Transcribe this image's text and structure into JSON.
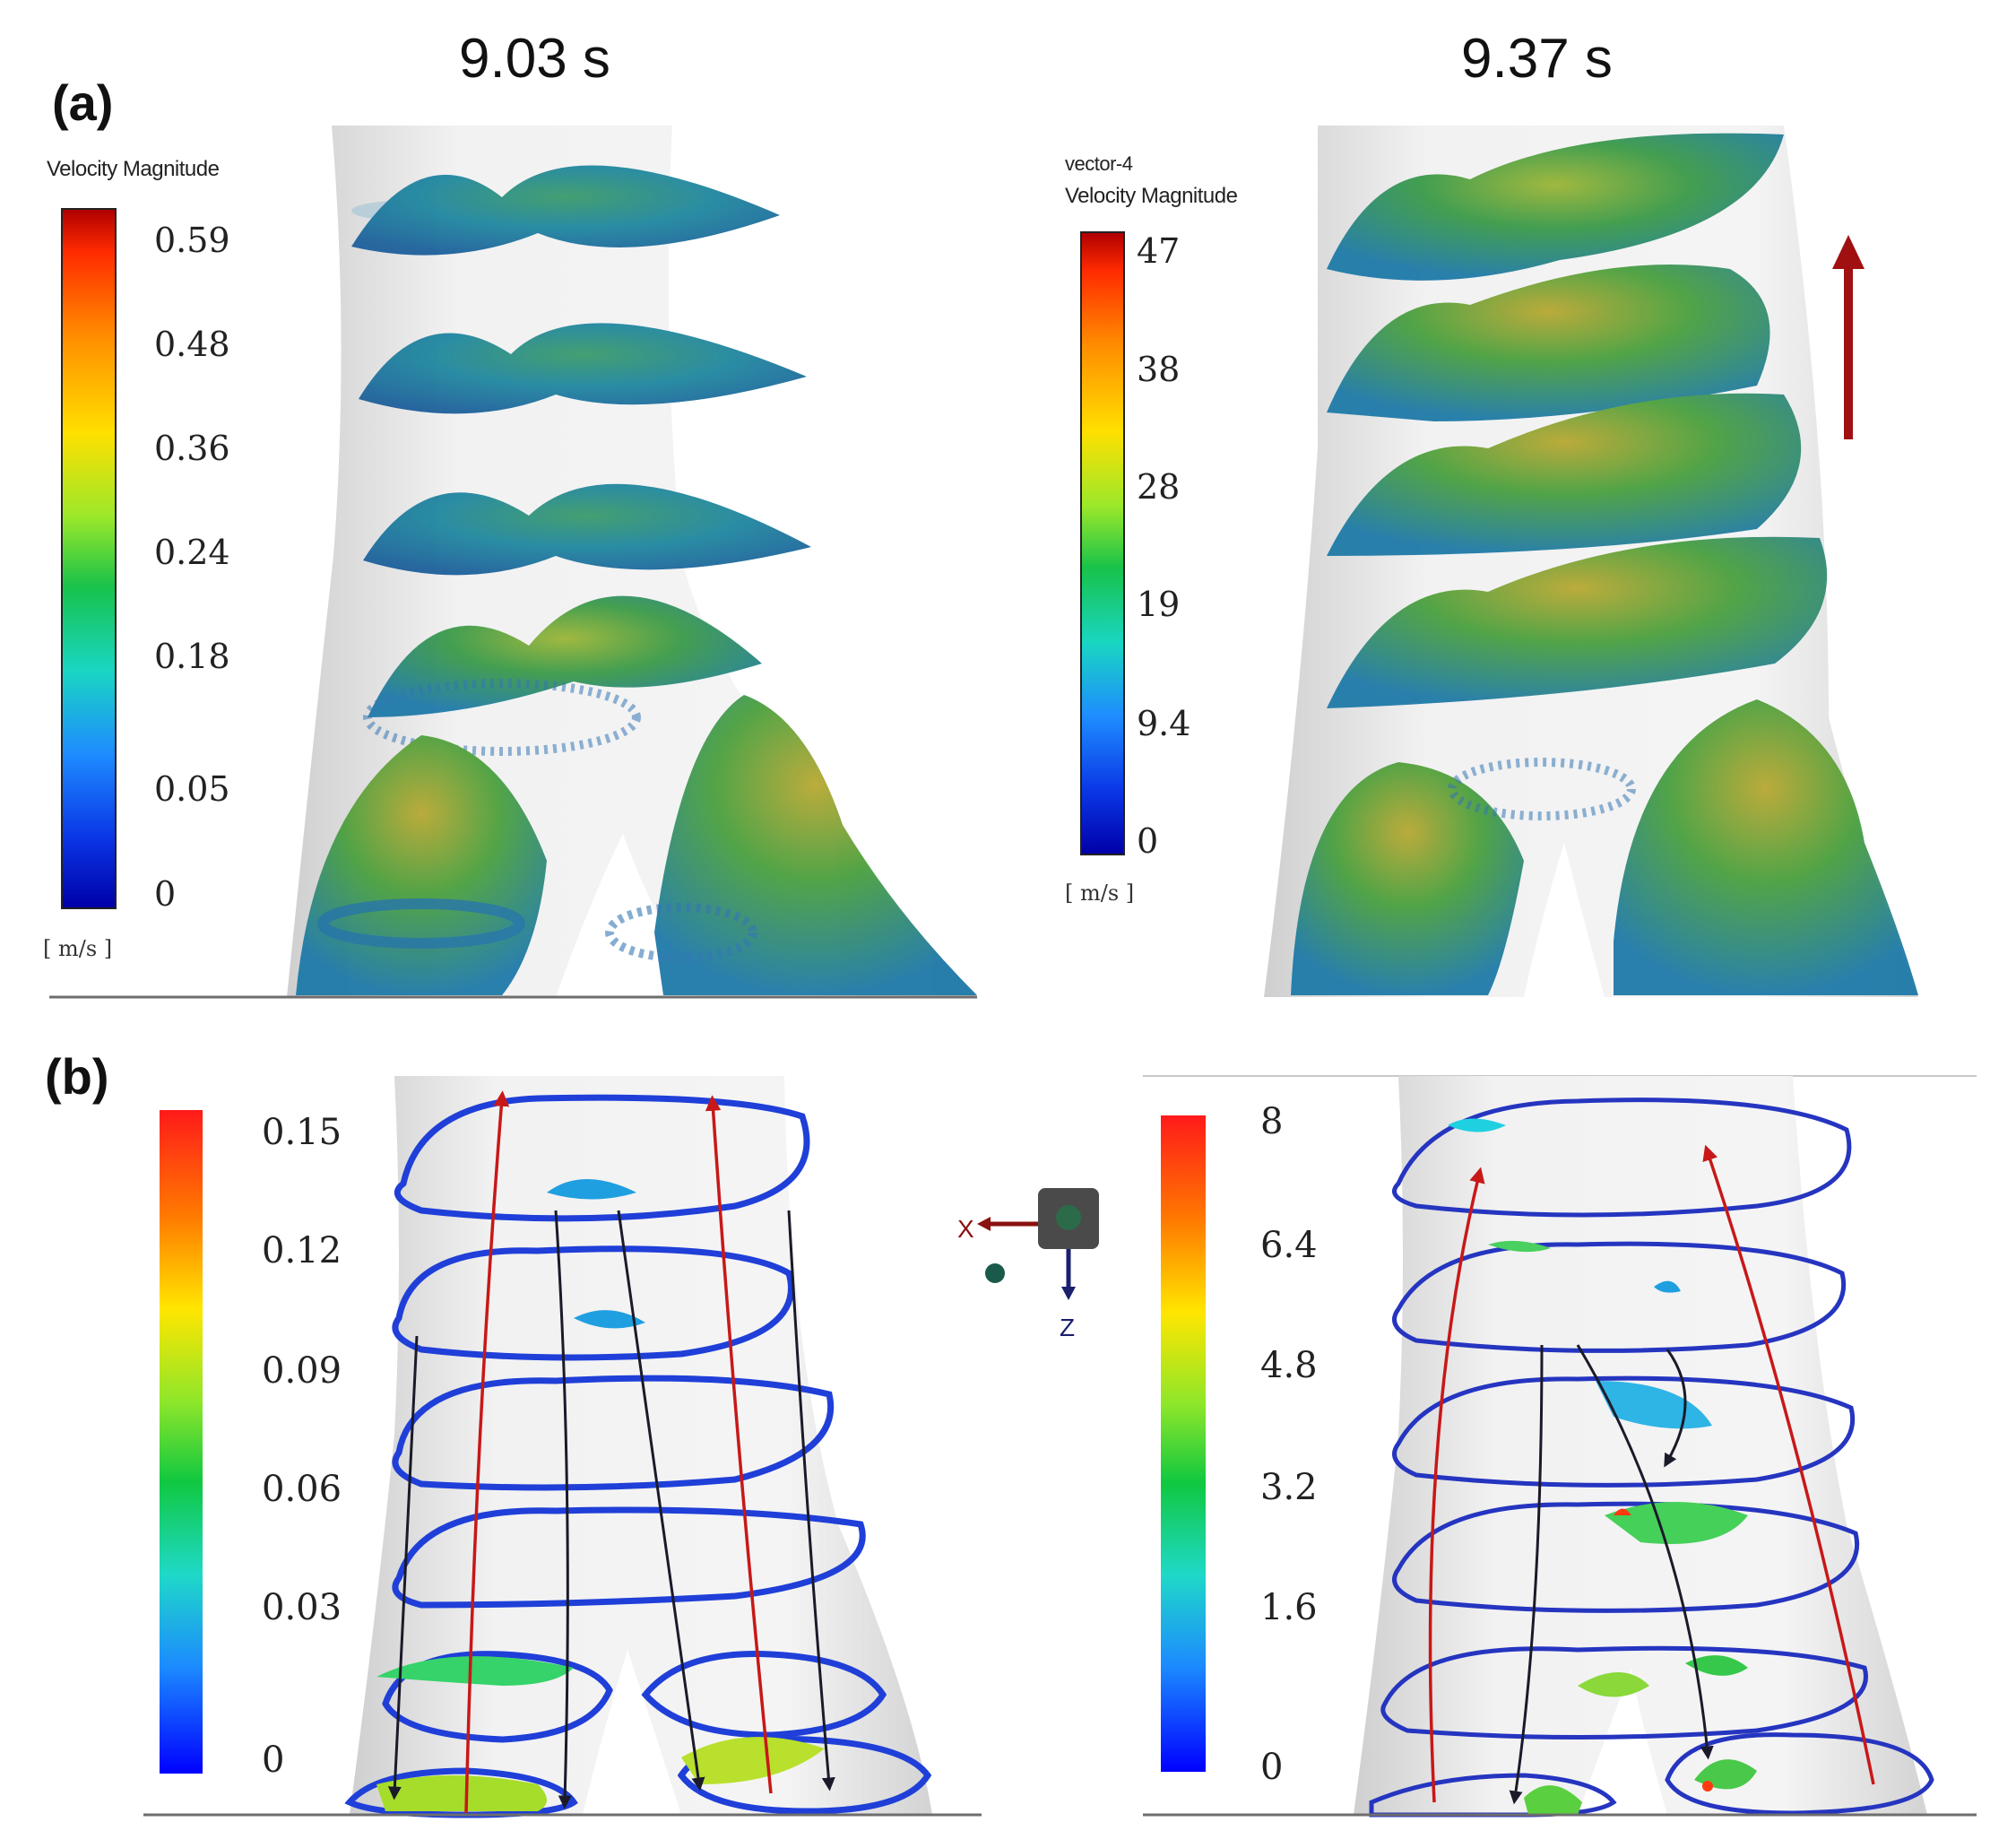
{
  "times": {
    "left": "9.03 s",
    "right": "9.37 s"
  },
  "panels": {
    "a": "(a)",
    "b": "(b)"
  },
  "colors": {
    "axis": "#6e6e6e",
    "arrow_red": "#a01010",
    "streak_blue": "#1d6fa8",
    "streak_green": "#2e9e4a"
  },
  "a_left_legend": {
    "title": "Velocity Magnitude",
    "ticks": [
      "0.59",
      "0.48",
      "0.36",
      "0.24",
      "0.18",
      "0.05",
      "0"
    ],
    "unit": "[ m/s ]"
  },
  "a_right_legend": {
    "title_line1": "vector-4",
    "title_line2": "Velocity Magnitude",
    "ticks": [
      "47",
      "38",
      "28",
      "19",
      "9.4",
      "0"
    ],
    "unit": "[ m/s ]"
  },
  "b_left_legend": {
    "ticks": [
      "0.15",
      "0.12",
      "0.09",
      "0.06",
      "0.03",
      "0"
    ]
  },
  "b_right_legend": {
    "ticks": [
      "8",
      "6.4",
      "4.8",
      "3.2",
      "1.6",
      "0"
    ]
  },
  "triad": {
    "x": "X",
    "z": "Z"
  },
  "icons": [
    "upward-flow-arrow-icon",
    "axis-triad-icon"
  ]
}
